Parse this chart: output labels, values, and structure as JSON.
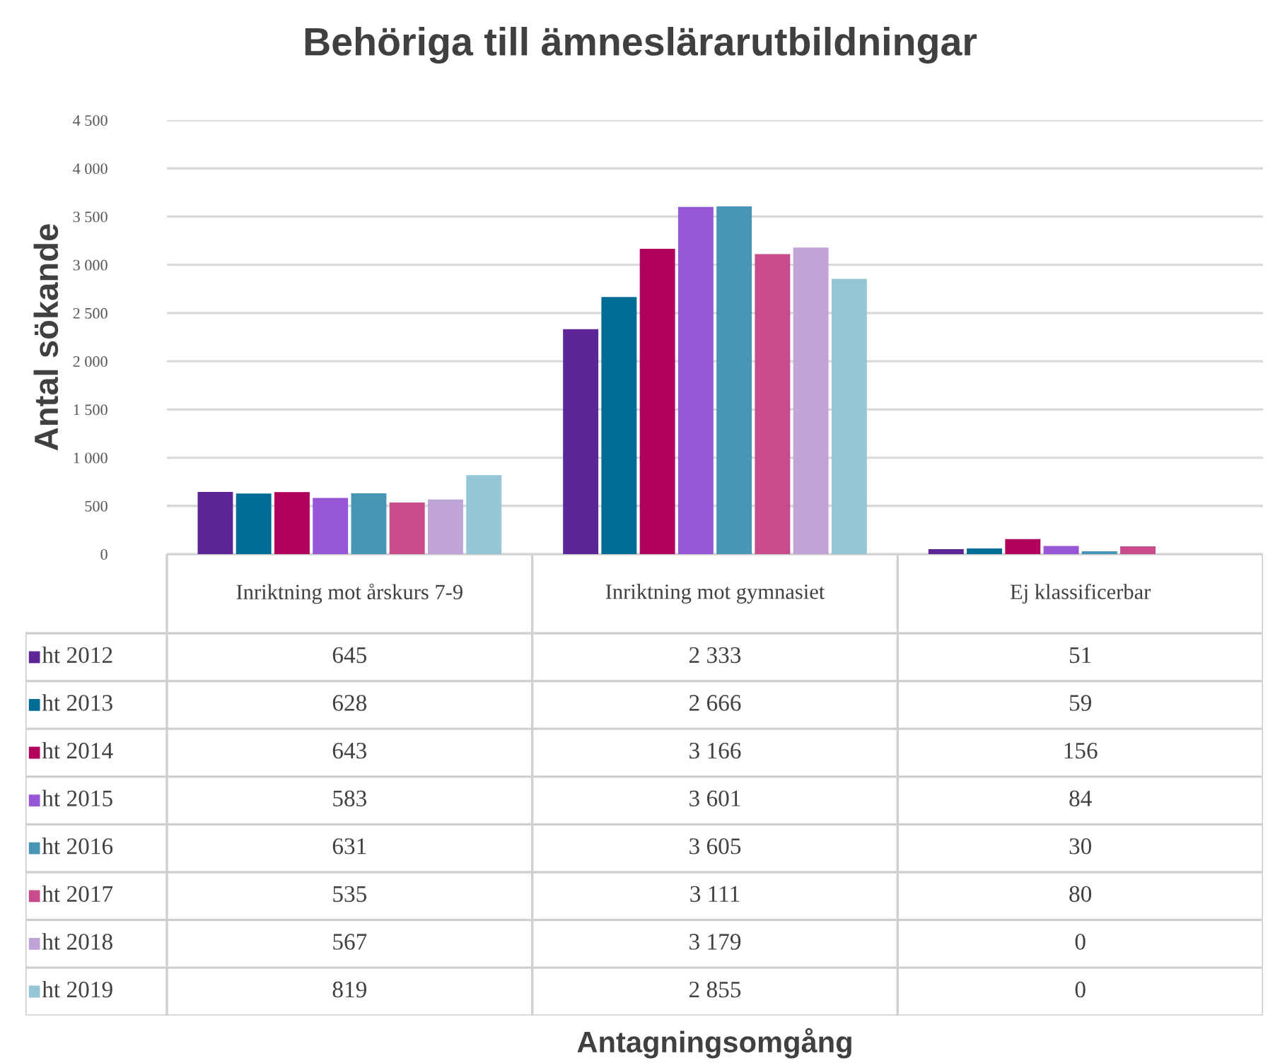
{
  "chart_data": {
    "type": "bar",
    "title": "Behöriga till ämneslärarutbildningar",
    "annotations": [
      "Antagningsomgång"
    ],
    "ylabel": "Antal sökande",
    "categories": [
      "Inriktning mot årskurs 7-9",
      "Inriktning mot gymnasiet",
      "Ej klassificerbar"
    ],
    "series": [
      {
        "name": "ht 2012",
        "color": "#5e2598",
        "values": [
          645,
          2333,
          51
        ],
        "value_labels": [
          "645",
          "2 333",
          "51"
        ]
      },
      {
        "name": "ht 2013",
        "color": "#006c96",
        "values": [
          628,
          2666,
          59
        ],
        "value_labels": [
          "628",
          "2 666",
          "59"
        ]
      },
      {
        "name": "ht 2014",
        "color": "#b0005c",
        "values": [
          643,
          3166,
          156
        ],
        "value_labels": [
          "643",
          "3 166",
          "156"
        ]
      },
      {
        "name": "ht 2015",
        "color": "#9656d6",
        "values": [
          583,
          3601,
          84
        ],
        "value_labels": [
          "583",
          "3 601",
          "84"
        ]
      },
      {
        "name": "ht 2016",
        "color": "#4796b6",
        "values": [
          631,
          3605,
          30
        ],
        "value_labels": [
          "631",
          "3 605",
          "30"
        ]
      },
      {
        "name": "ht 2017",
        "color": "#c84c8c",
        "values": [
          535,
          3111,
          80
        ],
        "value_labels": [
          "535",
          "3 111",
          "80"
        ]
      },
      {
        "name": "ht 2018",
        "color": "#c0a4d8",
        "values": [
          567,
          3179,
          0
        ],
        "value_labels": [
          "567",
          "3 179",
          "0"
        ]
      },
      {
        "name": "ht 2019",
        "color": "#95c6d8",
        "values": [
          819,
          2855,
          0
        ],
        "value_labels": [
          "819",
          "2 855",
          "0"
        ]
      }
    ],
    "ylim": [
      0,
      4500
    ],
    "yticks": [
      0,
      500,
      {
        "value": 1000,
        "label": "1 000"
      },
      {
        "value": 1500,
        "label": "1 500"
      },
      {
        "value": 2000,
        "label": "2 000"
      },
      {
        "value": 2500,
        "label": "2 500"
      },
      {
        "value": 3000,
        "label": "3 000"
      },
      {
        "value": 3500,
        "label": "3 500"
      },
      {
        "value": 4000,
        "label": "4 000"
      },
      {
        "value": 4500,
        "label": "4 500"
      }
    ],
    "grid": "y",
    "legend": "bottom"
  }
}
